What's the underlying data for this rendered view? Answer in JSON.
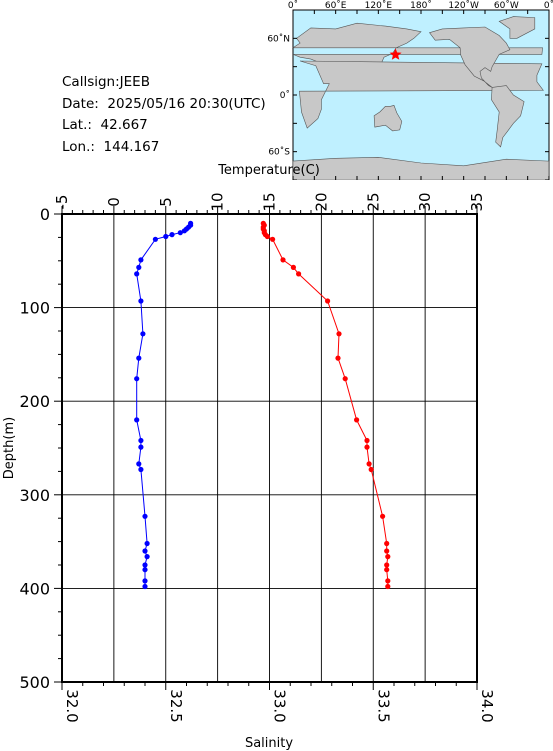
{
  "station": {
    "callsign": "Callsign:JEEB",
    "date": "Date:  2025/05/16 20:30(UTC)",
    "lat": "Lat.:  42.667",
    "lon": "Lon.:  144.167"
  },
  "map": {
    "top_labels": [
      "0˚",
      "60˚E",
      "120˚E",
      "180˚",
      "120˚W",
      "60˚W",
      "0˚"
    ],
    "lat_labels": [
      "60˚N",
      "0˚",
      "60˚S"
    ],
    "ocean_color": "#bff0ff",
    "land_color": "#c8c8c8",
    "marker_icon": "star-icon",
    "marker_color": "#ff0000",
    "marker_lat": 42.667,
    "marker_lon": 144.167
  },
  "chart_data": {
    "type": "line",
    "ylabel": "Depth(m)",
    "ylim": [
      0,
      500
    ],
    "yticks": [
      "0",
      "100",
      "200",
      "300",
      "400",
      "500"
    ],
    "grid": true,
    "top_axis": {
      "label": "Temperature(C)",
      "range": [
        -5,
        35
      ],
      "ticks": [
        "-5",
        "0",
        "5",
        "10",
        "15",
        "20",
        "25",
        "30",
        "35"
      ]
    },
    "bottom_axis": {
      "label": "Salinity",
      "range": [
        32.0,
        34.0
      ],
      "ticks": [
        "32.0",
        "32.5",
        "33.0",
        "33.5",
        "34.0"
      ]
    },
    "series": [
      {
        "color": "#ff0000",
        "axis": "top",
        "points": [
          {
            "x": 14.4,
            "y": 10
          },
          {
            "x": 14.5,
            "y": 12
          },
          {
            "x": 14.4,
            "y": 14
          },
          {
            "x": 14.4,
            "y": 16
          },
          {
            "x": 14.5,
            "y": 18
          },
          {
            "x": 14.5,
            "y": 20
          },
          {
            "x": 14.6,
            "y": 22
          },
          {
            "x": 14.8,
            "y": 24
          },
          {
            "x": 15.3,
            "y": 27
          },
          {
            "x": 16.3,
            "y": 49
          },
          {
            "x": 17.3,
            "y": 57
          },
          {
            "x": 17.8,
            "y": 64
          },
          {
            "x": 20.6,
            "y": 93
          },
          {
            "x": 21.7,
            "y": 128
          },
          {
            "x": 21.6,
            "y": 154
          },
          {
            "x": 22.3,
            "y": 176
          },
          {
            "x": 23.4,
            "y": 220
          },
          {
            "x": 24.4,
            "y": 242
          },
          {
            "x": 24.4,
            "y": 249
          },
          {
            "x": 24.6,
            "y": 267
          },
          {
            "x": 24.8,
            "y": 273
          },
          {
            "x": 25.9,
            "y": 323
          },
          {
            "x": 26.3,
            "y": 352
          },
          {
            "x": 26.3,
            "y": 360
          },
          {
            "x": 26.4,
            "y": 366
          },
          {
            "x": 26.3,
            "y": 375
          },
          {
            "x": 26.3,
            "y": 380
          },
          {
            "x": 26.4,
            "y": 392
          },
          {
            "x": 26.4,
            "y": 398
          }
        ]
      },
      {
        "color": "#0000ff",
        "axis": "bottom",
        "points": [
          {
            "x": 32.62,
            "y": 10
          },
          {
            "x": 32.62,
            "y": 12
          },
          {
            "x": 32.61,
            "y": 14
          },
          {
            "x": 32.6,
            "y": 16
          },
          {
            "x": 32.59,
            "y": 18
          },
          {
            "x": 32.57,
            "y": 20
          },
          {
            "x": 32.53,
            "y": 22
          },
          {
            "x": 32.5,
            "y": 24
          },
          {
            "x": 32.45,
            "y": 27
          },
          {
            "x": 32.38,
            "y": 49
          },
          {
            "x": 32.37,
            "y": 57
          },
          {
            "x": 32.36,
            "y": 64
          },
          {
            "x": 32.38,
            "y": 93
          },
          {
            "x": 32.39,
            "y": 128
          },
          {
            "x": 32.37,
            "y": 154
          },
          {
            "x": 32.36,
            "y": 176
          },
          {
            "x": 32.36,
            "y": 220
          },
          {
            "x": 32.38,
            "y": 242
          },
          {
            "x": 32.38,
            "y": 249
          },
          {
            "x": 32.37,
            "y": 267
          },
          {
            "x": 32.38,
            "y": 273
          },
          {
            "x": 32.4,
            "y": 323
          },
          {
            "x": 32.41,
            "y": 352
          },
          {
            "x": 32.4,
            "y": 360
          },
          {
            "x": 32.41,
            "y": 366
          },
          {
            "x": 32.4,
            "y": 375
          },
          {
            "x": 32.4,
            "y": 380
          },
          {
            "x": 32.4,
            "y": 392
          },
          {
            "x": 32.4,
            "y": 398
          }
        ]
      }
    ]
  }
}
